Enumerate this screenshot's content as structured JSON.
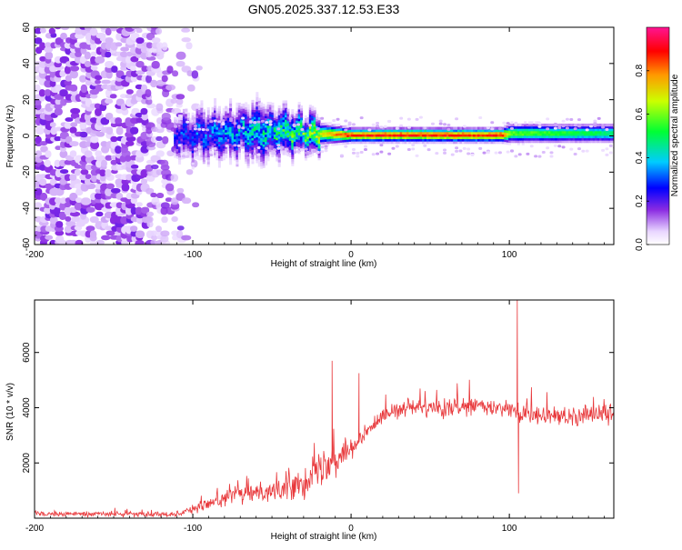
{
  "title": "GN05.2025.337.12.53.E33",
  "chart_data": [
    {
      "type": "heatmap",
      "title": "",
      "xlabel": "Height of straight line (km)",
      "ylabel": "Frequency (Hz)",
      "xlim": [
        -200,
        166
      ],
      "ylim": [
        -60,
        60
      ],
      "x_ticks": [
        -200,
        -100,
        0,
        100
      ],
      "y_ticks": [
        -60,
        -40,
        -20,
        0,
        20,
        40,
        60
      ],
      "colorbar": {
        "label": "Normalized spectral amplitude",
        "range": [
          0,
          1
        ],
        "ticks": [
          0.0,
          0.2,
          0.4,
          0.6,
          0.8
        ]
      },
      "description": "Broadband noise below -110 km; signal band centered near 0 Hz from about -110 km to the end, amplitude near 0.9 between -20 and 95 km",
      "signal_band": [
        {
          "x": -110,
          "center": 0,
          "halfwidth": 8,
          "amplitude": 0.3
        },
        {
          "x": -60,
          "center": 2,
          "halfwidth": 10,
          "amplitude": 0.45
        },
        {
          "x": -30,
          "center": 1,
          "halfwidth": 5,
          "amplitude": 0.6
        },
        {
          "x": 0,
          "center": 0,
          "halfwidth": 3,
          "amplitude": 0.9
        },
        {
          "x": 95,
          "center": 0,
          "halfwidth": 3,
          "amplitude": 0.9
        },
        {
          "x": 100,
          "center": 1,
          "halfwidth": 4,
          "amplitude": 0.6
        },
        {
          "x": 166,
          "center": 1,
          "halfwidth": 4,
          "amplitude": 0.5
        }
      ]
    },
    {
      "type": "line",
      "title": "",
      "xlabel": "Height of straight line (km)",
      "ylabel": "SNR (10 * v/v)",
      "xlim": [
        -200,
        166
      ],
      "ylim": [
        0,
        7900
      ],
      "x_ticks": [
        -200,
        -100,
        0,
        100
      ],
      "y_ticks": [
        2000,
        4000,
        6000
      ],
      "series": [
        {
          "name": "SNR",
          "color": "#e8383b",
          "envelope": [
            {
              "x": -200,
              "mean": 150,
              "noise": 120
            },
            {
              "x": -110,
              "mean": 150,
              "noise": 130
            },
            {
              "x": -95,
              "mean": 450,
              "noise": 300
            },
            {
              "x": -75,
              "mean": 800,
              "noise": 400
            },
            {
              "x": -55,
              "mean": 1000,
              "noise": 500
            },
            {
              "x": -40,
              "mean": 1100,
              "noise": 600
            },
            {
              "x": -25,
              "mean": 1500,
              "noise": 900
            },
            {
              "x": -10,
              "mean": 2200,
              "noise": 900
            },
            {
              "x": 5,
              "mean": 2700,
              "noise": 500
            },
            {
              "x": 20,
              "mean": 3800,
              "noise": 400
            },
            {
              "x": 40,
              "mean": 4000,
              "noise": 400
            },
            {
              "x": 60,
              "mean": 3950,
              "noise": 450
            },
            {
              "x": 80,
              "mean": 4050,
              "noise": 500
            },
            {
              "x": 100,
              "mean": 3900,
              "noise": 500
            },
            {
              "x": 120,
              "mean": 3700,
              "noise": 500
            },
            {
              "x": 140,
              "mean": 3700,
              "noise": 550
            },
            {
              "x": 166,
              "mean": 3800,
              "noise": 600
            }
          ],
          "spikes": [
            {
              "x": -12,
              "y": 5700
            },
            {
              "x": 5,
              "y": 5250
            },
            {
              "x": 105,
              "y": 7900
            },
            {
              "x": 105.8,
              "y": 900
            }
          ]
        }
      ]
    }
  ],
  "colors": {
    "axis": "#000000",
    "line": "#e8383b",
    "noise_violet": "#7d3cf0"
  }
}
